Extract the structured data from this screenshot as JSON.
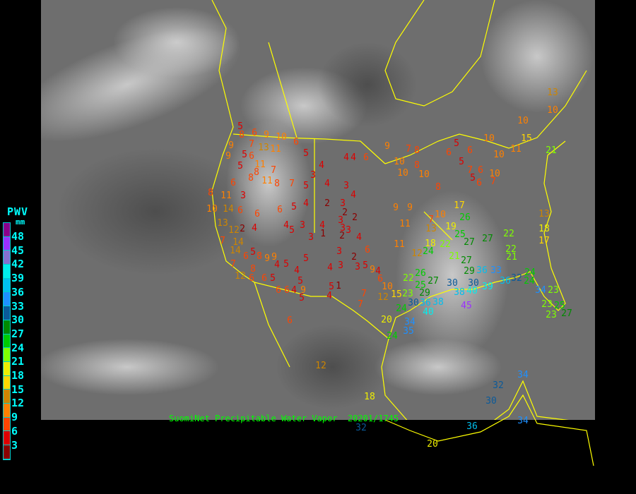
{
  "caption": "SuomiNet Precipitable Water Vapor  20201/1745",
  "legend": {
    "title": "PWV",
    "unit": "mm",
    "ticks": [
      "48",
      "45",
      "42",
      "39",
      "36",
      "33",
      "30",
      "27",
      "24",
      "21",
      "18",
      "15",
      "12",
      "9",
      "6",
      "3"
    ],
    "band_colors": [
      "#8b008b",
      "#9b30ff",
      "#8470d0",
      "#00eeee",
      "#00bfee",
      "#1e90ff",
      "#0a5a9a",
      "#008b00",
      "#00cd00",
      "#7fff00",
      "#eeee00",
      "#ffd700",
      "#cd8500",
      "#ff8000",
      "#ff4500",
      "#dd0000",
      "#8b0000"
    ]
  },
  "map": {
    "background": "#6e6e6e",
    "border_color": "#ffff00",
    "station_values": [
      5,
      8,
      6,
      9,
      10,
      6,
      5,
      7,
      13,
      11,
      9,
      5,
      6,
      9,
      5,
      11,
      7,
      8,
      8,
      6,
      11,
      8,
      7,
      5,
      4,
      4,
      2,
      4,
      4,
      6,
      3,
      4,
      8,
      11,
      3,
      10,
      14,
      6,
      6,
      6,
      5,
      3,
      4,
      3,
      2,
      2,
      3,
      3,
      4,
      5,
      3,
      3,
      4,
      1,
      2,
      3,
      4,
      2,
      4,
      13,
      12,
      7,
      14,
      14,
      6,
      5,
      8,
      9,
      9,
      4,
      5,
      7,
      8,
      12,
      6,
      6,
      5,
      4,
      5,
      3,
      3,
      3,
      4,
      2,
      6,
      5,
      4,
      6,
      6,
      6,
      4,
      9,
      5,
      5,
      1,
      4,
      5,
      6,
      7,
      7,
      12,
      10,
      9,
      15,
      12,
      18,
      9,
      7,
      8,
      8,
      10,
      10,
      10,
      8,
      9,
      9,
      11,
      7,
      10,
      13,
      19,
      17,
      26,
      25,
      27,
      22,
      13,
      18,
      17,
      10,
      11,
      10,
      15,
      21,
      5,
      6,
      5,
      7,
      5,
      6,
      6,
      7,
      10,
      6,
      13,
      10,
      10,
      27,
      22,
      21,
      11,
      12,
      24,
      18,
      22,
      21,
      27,
      29,
      36,
      33,
      30,
      30,
      26,
      22,
      25,
      27,
      29,
      23,
      30,
      24,
      20,
      34,
      35,
      36,
      38,
      38,
      40,
      45,
      39,
      36,
      32,
      24,
      24,
      34,
      23,
      23,
      25,
      27,
      23,
      40,
      24,
      32,
      30,
      34,
      36,
      32,
      20,
      34
    ]
  }
}
